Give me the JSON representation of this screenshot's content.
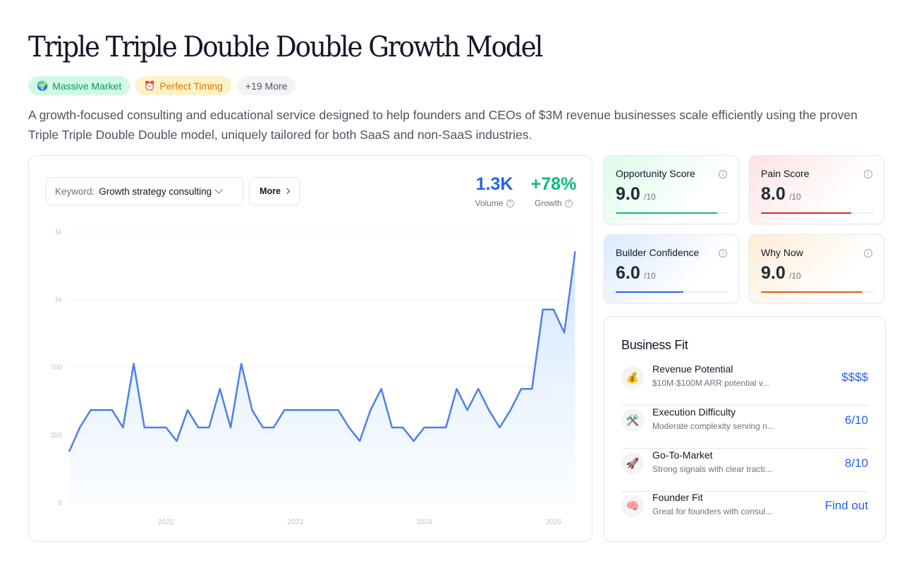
{
  "title": "Triple Triple Double Double Growth Model",
  "tags": [
    {
      "emoji": "🌍",
      "label": "Massive Market"
    },
    {
      "emoji": "⏰",
      "label": "Perfect Timing"
    },
    {
      "label": "+19 More"
    }
  ],
  "description": "A growth-focused consulting and educational service designed to help founders and CEOs of $3M revenue businesses scale efficiently using the proven Triple Triple Double Double model, uniquely tailored for both SaaS and non-SaaS industries.",
  "keyword": {
    "label": "Keyword:",
    "value": "Growth strategy consulting"
  },
  "more_button": "More",
  "metrics": {
    "volume": {
      "value": "1.3K",
      "label": "Volume",
      "color": "#2563eb"
    },
    "growth": {
      "value": "+78%",
      "label": "Growth",
      "color": "#10b981"
    }
  },
  "chart_data": {
    "type": "area",
    "title": "",
    "xlabel": "",
    "ylabel": "",
    "y_tick_labels": [
      "0",
      "350",
      "700",
      "1k",
      "1k"
    ],
    "y_tick_values": [
      0,
      350,
      700,
      1050,
      1400
    ],
    "ylim": [
      0,
      1400
    ],
    "x_tick_labels": [
      "2022",
      "2023",
      "2024",
      "2025"
    ],
    "x_tick_values": [
      2022,
      2023,
      2024,
      2025
    ],
    "xlim": [
      2021.25,
      2025.17
    ],
    "grid": true,
    "line_color": "#4f7fe8",
    "series": [
      {
        "x": [
          2021.25,
          2021.333,
          2021.417,
          2021.5,
          2021.583,
          2021.667,
          2021.75,
          2021.833,
          2021.917,
          2022.0,
          2022.083,
          2022.167,
          2022.25,
          2022.333,
          2022.417,
          2022.5,
          2022.583,
          2022.667,
          2022.75,
          2022.833,
          2022.917,
          2023.0,
          2023.083,
          2023.167,
          2023.25,
          2023.333,
          2023.417,
          2023.5,
          2023.583,
          2023.667,
          2023.75,
          2023.833,
          2023.917,
          2024.0,
          2024.083,
          2024.167,
          2024.25,
          2024.333,
          2024.417,
          2024.5,
          2024.583,
          2024.667,
          2024.75,
          2024.833,
          2024.917,
          2025.0,
          2025.083,
          2025.167
        ],
        "values": [
          265,
          390,
          480,
          480,
          480,
          390,
          720,
          390,
          390,
          390,
          320,
          480,
          390,
          390,
          590,
          390,
          720,
          480,
          390,
          390,
          480,
          480,
          480,
          480,
          480,
          480,
          390,
          320,
          480,
          590,
          390,
          390,
          320,
          390,
          390,
          390,
          590,
          480,
          590,
          480,
          390,
          480,
          590,
          590,
          1000,
          1000,
          880,
          1300
        ]
      }
    ]
  },
  "scores": [
    {
      "title": "Opportunity Score",
      "value": "9.0",
      "denom": "/10",
      "fraction": 0.9,
      "color": "#10b981",
      "style": "green"
    },
    {
      "title": "Pain Score",
      "value": "8.0",
      "denom": "/10",
      "fraction": 0.8,
      "color": "#dc2626",
      "style": "red"
    },
    {
      "title": "Builder Confidence",
      "value": "6.0",
      "denom": "/10",
      "fraction": 0.6,
      "color": "#2563eb",
      "style": "blue"
    },
    {
      "title": "Why Now",
      "value": "9.0",
      "denom": "/10",
      "fraction": 0.9,
      "color": "#ea580c",
      "style": "orange"
    }
  ],
  "business_fit": {
    "title": "Business Fit",
    "rows": [
      {
        "icon": "💰",
        "name": "Revenue Potential",
        "sub": "$10M-$100M ARR potential v...",
        "value": "$$$$"
      },
      {
        "icon": "🛠️",
        "name": "Execution Difficulty",
        "sub": "Moderate complexity serving n...",
        "value": "6/10"
      },
      {
        "icon": "🚀",
        "name": "Go-To-Market",
        "sub": "Strong signals with clear tracti...",
        "value": "8/10"
      },
      {
        "icon": "🧠",
        "name": "Founder Fit",
        "sub": "Great for founders with consul...",
        "value": "Find out"
      }
    ]
  }
}
